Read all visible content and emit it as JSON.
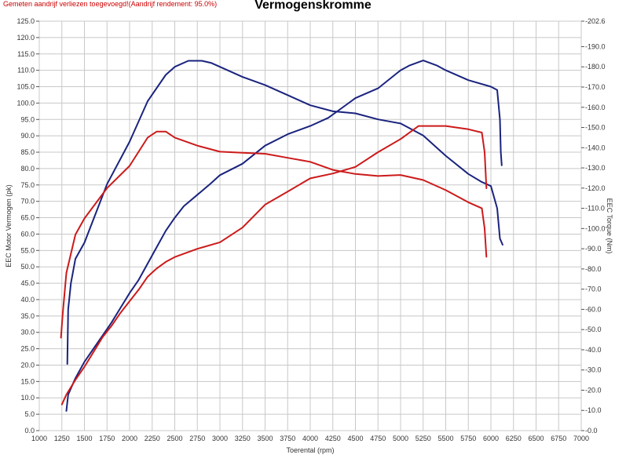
{
  "header": {
    "note": "Gemeten aandrijf verliezen toegevoegd!(Aandrijf rendement: 95.0%)",
    "title": "Vermogenskromme"
  },
  "chart_data": {
    "type": "line",
    "title": "Vermogenskromme",
    "xlabel": "Toerental (rpm)",
    "ylabel": "EEC Motor Vermogen (pk)",
    "y2label": "EEC Torque (Nm)",
    "xlim": [
      1000,
      7000
    ],
    "ylim": [
      0,
      125
    ],
    "y2lim": [
      0,
      202.6
    ],
    "grid": true,
    "x_ticks": [
      "1000",
      "1250",
      "1500",
      "1750",
      "2000",
      "2250",
      "2500",
      "2750",
      "3000",
      "3250",
      "3500",
      "3750",
      "4000",
      "4250",
      "4500",
      "4750",
      "5000",
      "5250",
      "5500",
      "5750",
      "6000",
      "6250",
      "6500",
      "6750",
      "7000"
    ],
    "y_ticks": [
      "0.0",
      "5.0",
      "10.0",
      "15.0",
      "20.0",
      "25.0",
      "30.0",
      "35.0",
      "40.0",
      "45.0",
      "50.0",
      "55.0",
      "60.0",
      "65.0",
      "70.0",
      "75.0",
      "80.0",
      "85.0",
      "90.0",
      "95.0",
      "100.0",
      "105.0",
      "110.0",
      "115.0",
      "120.0",
      "125.0"
    ],
    "y2_ticks": [
      "0.0",
      "10.0",
      "20.0",
      "30.0",
      "40.0",
      "50.0",
      "60.0",
      "70.0",
      "80.0",
      "90.0",
      "100.0",
      "110.0",
      "120.0",
      "130.0",
      "140.0",
      "150.0",
      "160.0",
      "170.0",
      "180.0",
      "190.0",
      "202.6"
    ],
    "series": [
      {
        "axis": "left",
        "color": "#1a237e",
        "points": [
          [
            1300,
            6
          ],
          [
            1320,
            11
          ],
          [
            1400,
            16
          ],
          [
            1500,
            21
          ],
          [
            1600,
            25
          ],
          [
            1700,
            29
          ],
          [
            1800,
            33
          ],
          [
            1900,
            37.5
          ],
          [
            2000,
            42
          ],
          [
            2100,
            46
          ],
          [
            2200,
            51
          ],
          [
            2300,
            56
          ],
          [
            2400,
            61
          ],
          [
            2500,
            65
          ],
          [
            2600,
            68.5
          ],
          [
            2750,
            72
          ],
          [
            2900,
            75.5
          ],
          [
            3000,
            78
          ],
          [
            3250,
            81.5
          ],
          [
            3500,
            87
          ],
          [
            3750,
            90.5
          ],
          [
            4000,
            93
          ],
          [
            4200,
            95.5
          ],
          [
            4400,
            99.5
          ],
          [
            4500,
            101.5
          ],
          [
            4750,
            104.5
          ],
          [
            5000,
            110
          ],
          [
            5100,
            111.5
          ],
          [
            5250,
            113
          ],
          [
            5400,
            111.5
          ],
          [
            5500,
            110
          ],
          [
            5750,
            107
          ],
          [
            6000,
            105
          ],
          [
            6070,
            104
          ],
          [
            6100,
            95
          ],
          [
            6110,
            85
          ],
          [
            6120,
            81
          ]
        ]
      },
      {
        "axis": "right",
        "color": "#1a237e",
        "points": [
          [
            1310,
            33
          ],
          [
            1320,
            60
          ],
          [
            1350,
            73
          ],
          [
            1400,
            85
          ],
          [
            1500,
            93
          ],
          [
            1750,
            122
          ],
          [
            2000,
            143
          ],
          [
            2200,
            163
          ],
          [
            2400,
            176
          ],
          [
            2500,
            180
          ],
          [
            2650,
            183
          ],
          [
            2800,
            183
          ],
          [
            2900,
            182
          ],
          [
            3000,
            180
          ],
          [
            3250,
            175
          ],
          [
            3500,
            171
          ],
          [
            3750,
            166
          ],
          [
            4000,
            161
          ],
          [
            4250,
            158
          ],
          [
            4500,
            157
          ],
          [
            4750,
            154
          ],
          [
            5000,
            152
          ],
          [
            5250,
            146
          ],
          [
            5500,
            136
          ],
          [
            5750,
            127
          ],
          [
            5900,
            123
          ],
          [
            6000,
            121
          ],
          [
            6070,
            110
          ],
          [
            6100,
            95
          ],
          [
            6130,
            92
          ]
        ]
      },
      {
        "axis": "left",
        "color": "#cc1a1a",
        "points": [
          [
            1250,
            8
          ],
          [
            1300,
            11
          ],
          [
            1400,
            15.5
          ],
          [
            1500,
            19.5
          ],
          [
            1600,
            24
          ],
          [
            1700,
            28.5
          ],
          [
            1800,
            32
          ],
          [
            1900,
            36
          ],
          [
            2000,
            39.5
          ],
          [
            2100,
            43
          ],
          [
            2200,
            47
          ],
          [
            2300,
            49.5
          ],
          [
            2400,
            51.5
          ],
          [
            2500,
            53
          ],
          [
            2750,
            55.5
          ],
          [
            3000,
            57.5
          ],
          [
            3250,
            62
          ],
          [
            3500,
            69
          ],
          [
            3750,
            73
          ],
          [
            4000,
            77
          ],
          [
            4250,
            78.5
          ],
          [
            4500,
            80.5
          ],
          [
            4750,
            85
          ],
          [
            5000,
            89
          ],
          [
            5200,
            93
          ],
          [
            5500,
            93
          ],
          [
            5750,
            92
          ],
          [
            5900,
            91
          ],
          [
            5930,
            85
          ],
          [
            5950,
            74
          ]
        ]
      },
      {
        "axis": "right",
        "color": "#cc1a1a",
        "points": [
          [
            1240,
            46
          ],
          [
            1260,
            58
          ],
          [
            1300,
            78
          ],
          [
            1400,
            97
          ],
          [
            1500,
            105
          ],
          [
            1750,
            120
          ],
          [
            2000,
            131
          ],
          [
            2200,
            145
          ],
          [
            2300,
            148
          ],
          [
            2400,
            148
          ],
          [
            2500,
            145
          ],
          [
            2750,
            141
          ],
          [
            3000,
            138
          ],
          [
            3250,
            137.5
          ],
          [
            3500,
            137
          ],
          [
            3750,
            135
          ],
          [
            4000,
            133
          ],
          [
            4250,
            129
          ],
          [
            4500,
            127
          ],
          [
            4750,
            126
          ],
          [
            5000,
            126.5
          ],
          [
            5250,
            124
          ],
          [
            5500,
            119
          ],
          [
            5750,
            113
          ],
          [
            5900,
            110
          ],
          [
            5930,
            100
          ],
          [
            5950,
            86
          ]
        ]
      }
    ]
  }
}
